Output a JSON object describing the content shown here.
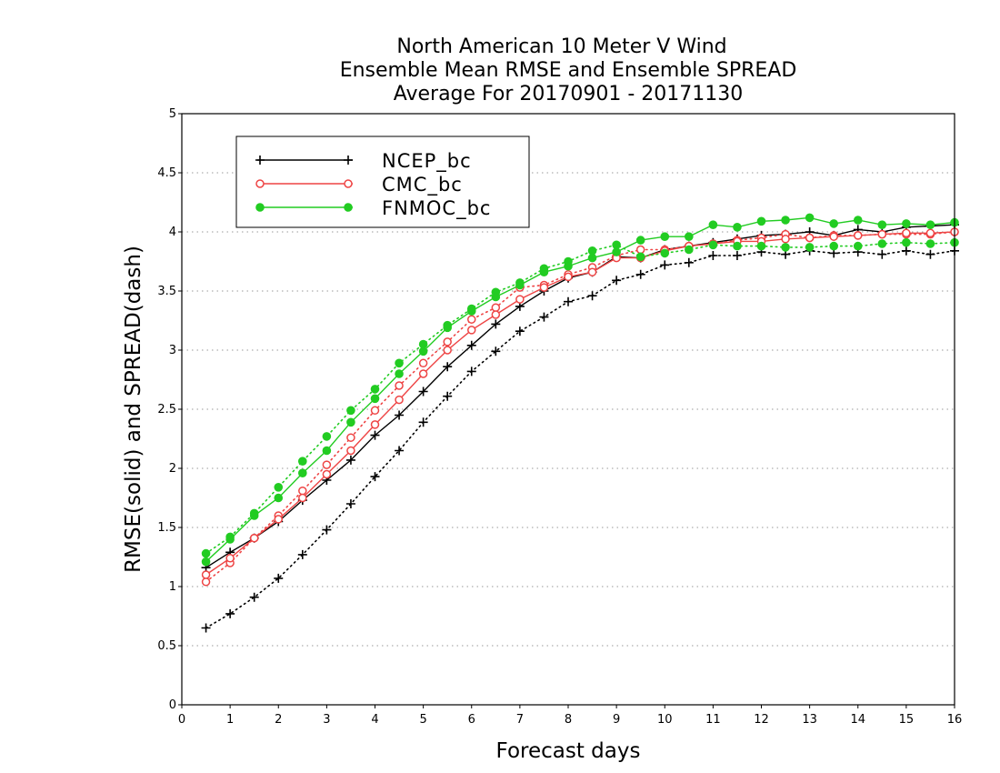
{
  "chart_data": {
    "type": "line",
    "title_lines": [
      "North American 10 Meter V Wind",
      "Ensemble Mean RMSE and Ensemble SPREAD",
      "Average For 20170901 - 20171130"
    ],
    "xlabel": "Forecast days",
    "ylabel": "RMSE(solid) and SPREAD(dash)",
    "xlim": [
      0,
      16
    ],
    "ylim": [
      0,
      5
    ],
    "xticks": [
      0,
      1,
      2,
      3,
      4,
      5,
      6,
      7,
      8,
      9,
      10,
      11,
      12,
      13,
      14,
      15,
      16
    ],
    "yticks": [
      0,
      0.5,
      1,
      1.5,
      2,
      2.5,
      3,
      3.5,
      4,
      4.5,
      5
    ],
    "grid": true,
    "legend_position": "top-left",
    "x": [
      0.5,
      1,
      1.5,
      2,
      2.5,
      3,
      3.5,
      4,
      4.5,
      5,
      5.5,
      6,
      6.5,
      7,
      7.5,
      8,
      8.5,
      9,
      9.5,
      10,
      10.5,
      11,
      11.5,
      12,
      12.5,
      13,
      13.5,
      14,
      14.5,
      15,
      15.5,
      16
    ],
    "series": [
      {
        "name": "NCEP_bc",
        "color": "#000000",
        "marker": "plus",
        "rmse": [
          1.16,
          1.29,
          1.41,
          1.55,
          1.73,
          1.9,
          2.07,
          2.28,
          2.45,
          2.65,
          2.86,
          3.04,
          3.22,
          3.37,
          3.5,
          3.61,
          3.66,
          3.79,
          3.78,
          3.85,
          3.88,
          3.91,
          3.94,
          3.97,
          3.98,
          4.0,
          3.97,
          4.02,
          4.0,
          4.04,
          4.05,
          4.06
        ],
        "spread": [
          0.65,
          0.77,
          0.91,
          1.07,
          1.27,
          1.48,
          1.7,
          1.93,
          2.15,
          2.39,
          2.61,
          2.82,
          2.99,
          3.16,
          3.28,
          3.41,
          3.46,
          3.59,
          3.64,
          3.72,
          3.74,
          3.8,
          3.8,
          3.83,
          3.81,
          3.84,
          3.82,
          3.83,
          3.81,
          3.84,
          3.81,
          3.84
        ]
      },
      {
        "name": "CMC_bc",
        "color": "#ee4444",
        "marker": "open-circle",
        "rmse": [
          1.1,
          1.24,
          1.41,
          1.57,
          1.75,
          1.95,
          2.15,
          2.37,
          2.58,
          2.8,
          3.0,
          3.17,
          3.3,
          3.43,
          3.53,
          3.62,
          3.66,
          3.78,
          3.78,
          3.84,
          3.88,
          3.9,
          3.92,
          3.92,
          3.94,
          3.95,
          3.96,
          3.97,
          3.98,
          3.99,
          3.99,
          4.0
        ],
        "spread": [
          1.04,
          1.2,
          1.41,
          1.6,
          1.81,
          2.03,
          2.26,
          2.49,
          2.7,
          2.89,
          3.07,
          3.26,
          3.36,
          3.53,
          3.55,
          3.64,
          3.7,
          3.8,
          3.85,
          3.85,
          3.88,
          3.9,
          3.93,
          3.95,
          3.98,
          3.95,
          3.97,
          3.97,
          3.98,
          3.98,
          3.98,
          4.0
        ]
      },
      {
        "name": "FNMOC_bc",
        "color": "#22cc22",
        "marker": "filled-circle",
        "rmse": [
          1.21,
          1.4,
          1.6,
          1.75,
          1.96,
          2.15,
          2.39,
          2.59,
          2.8,
          2.99,
          3.19,
          3.33,
          3.45,
          3.55,
          3.66,
          3.71,
          3.78,
          3.83,
          3.93,
          3.96,
          3.96,
          4.06,
          4.04,
          4.09,
          4.1,
          4.12,
          4.07,
          4.1,
          4.06,
          4.07,
          4.06,
          4.08
        ],
        "spread": [
          1.28,
          1.42,
          1.62,
          1.84,
          2.06,
          2.27,
          2.49,
          2.67,
          2.89,
          3.05,
          3.21,
          3.35,
          3.49,
          3.57,
          3.69,
          3.75,
          3.84,
          3.89,
          3.79,
          3.82,
          3.85,
          3.89,
          3.88,
          3.88,
          3.87,
          3.87,
          3.88,
          3.88,
          3.9,
          3.91,
          3.9,
          3.91
        ]
      }
    ]
  }
}
